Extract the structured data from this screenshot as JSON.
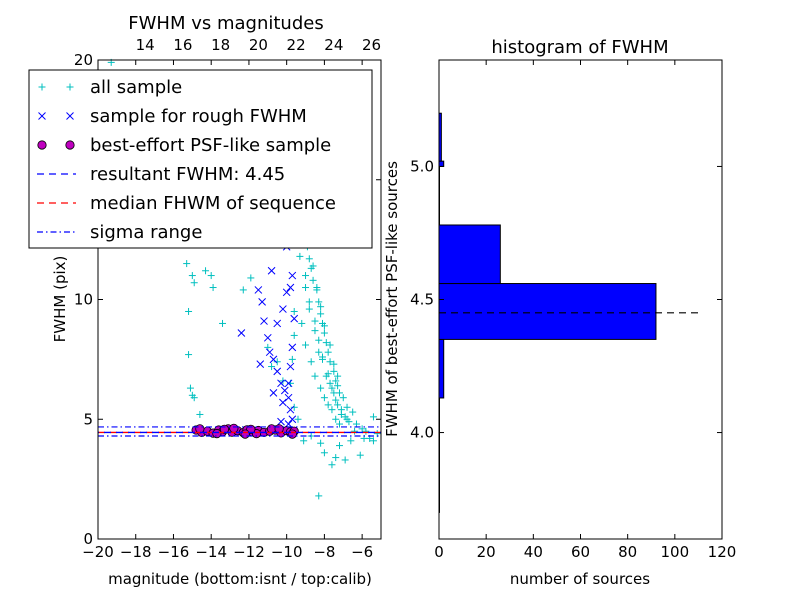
{
  "chart_data": [
    {
      "type": "scatter",
      "title": "FWHM vs magnitudes",
      "xlabel": "magnitude (bottom:isnt / top:calib)",
      "ylabel": "FWHM (pix)",
      "xlim": [
        -20,
        -5
      ],
      "ylim": [
        0,
        20
      ],
      "x_ticks": [
        -20,
        -18,
        -16,
        -14,
        -12,
        -10,
        -8,
        -6
      ],
      "x_tick_labels": [
        "−20",
        "−18",
        "−16",
        "−14",
        "−12",
        "−10",
        "−8",
        "−6"
      ],
      "y_ticks": [
        0,
        5,
        10,
        15,
        20
      ],
      "y_tick_labels": [
        "0",
        "5",
        "10",
        "",
        "20"
      ],
      "top_axis": {
        "offset": 31.5,
        "ticks": [
          14,
          16,
          18,
          20,
          22,
          24,
          26
        ],
        "tick_labels": [
          "14",
          "16",
          "18",
          "20",
          "22",
          "24",
          "26"
        ]
      },
      "legend": {
        "position": "upper-left",
        "entries": [
          {
            "label": "all sample",
            "marker": "plus",
            "color": "#00bfbf"
          },
          {
            "label": "sample for rough FWHM",
            "marker": "x",
            "color": "#0000ff"
          },
          {
            "label": "best-effort PSF-like sample",
            "marker": "circle",
            "color": "#bf00bf"
          },
          {
            "label": "resultant FWHM: 4.45",
            "marker": "dashed",
            "color": "#0000ff"
          },
          {
            "label": "median FHWM of sequence",
            "marker": "dashed",
            "color": "#ff0000"
          },
          {
            "label": "sigma range",
            "marker": "dashdot",
            "color": "#0000ff"
          }
        ]
      },
      "lines": {
        "resultant_fwhm": 4.45,
        "median_fwhm": 4.45,
        "sigma_low": 4.3,
        "sigma_high": 4.68
      },
      "series": [
        {
          "name": "all sample",
          "marker": "plus",
          "color": "#00bfbf",
          "points": [
            [
              -19.3,
              19.9
            ],
            [
              -15.3,
              11.5
            ],
            [
              -15.2,
              9.5
            ],
            [
              -15.2,
              7.7
            ],
            [
              -15.1,
              6.3
            ],
            [
              -15.0,
              6.0
            ],
            [
              -14.9,
              5.9
            ],
            [
              -15.0,
              11.0
            ],
            [
              -14.9,
              10.7
            ],
            [
              -14.6,
              5.2
            ],
            [
              -14.3,
              11.2
            ],
            [
              -14.0,
              11.0
            ],
            [
              -13.9,
              10.5
            ],
            [
              -13.4,
              9.0
            ],
            [
              -12.3,
              10.4
            ],
            [
              -11.9,
              10.9
            ],
            [
              -11.0,
              8.0
            ],
            [
              -10.8,
              7.2
            ],
            [
              -10.5,
              7.4
            ],
            [
              -10.2,
              6.6
            ],
            [
              -9.6,
              5.5
            ],
            [
              -9.4,
              5.0
            ],
            [
              -9.1,
              4.1
            ],
            [
              -8.7,
              4.3
            ],
            [
              -8.3,
              1.8
            ],
            [
              -8.2,
              4.0
            ],
            [
              -8.0,
              3.6
            ],
            [
              -7.6,
              3.1
            ],
            [
              -7.4,
              3.4
            ],
            [
              -7.2,
              3.9
            ],
            [
              -6.9,
              3.3
            ],
            [
              -6.6,
              4.1
            ],
            [
              -6.4,
              4.5
            ],
            [
              -6.1,
              3.5
            ],
            [
              -5.9,
              4.2
            ],
            [
              -5.6,
              4.2
            ],
            [
              -5.4,
              5.1
            ],
            [
              -5.4,
              4.1
            ],
            [
              -5.2,
              4.4
            ],
            [
              -9.3,
              11.8
            ],
            [
              -9.0,
              10.5
            ],
            [
              -8.8,
              9.6
            ],
            [
              -8.5,
              8.7
            ],
            [
              -8.3,
              7.8
            ],
            [
              -8.1,
              7.5
            ],
            [
              -7.9,
              6.8
            ],
            [
              -7.7,
              6.5
            ],
            [
              -7.5,
              6.1
            ],
            [
              -7.3,
              5.6
            ],
            [
              -7.1,
              5.2
            ],
            [
              -6.8,
              5.0
            ],
            [
              -6.5,
              5.3
            ],
            [
              -9.2,
              9.0
            ],
            [
              -9.0,
              8.1
            ],
            [
              -8.7,
              7.4
            ],
            [
              -8.5,
              6.8
            ],
            [
              -8.2,
              6.3
            ],
            [
              -8.0,
              5.9
            ],
            [
              -7.8,
              5.6
            ],
            [
              -7.6,
              5.4
            ],
            [
              -7.4,
              5.0
            ],
            [
              -7.2,
              4.8
            ],
            [
              -8.9,
              12.4
            ],
            [
              -8.6,
              11.4
            ],
            [
              -8.4,
              10.4
            ],
            [
              -8.2,
              9.4
            ],
            [
              -8.0,
              8.6
            ],
            [
              -7.8,
              7.8
            ],
            [
              -7.5,
              7.0
            ],
            [
              -7.3,
              6.4
            ],
            [
              -7.0,
              5.9
            ],
            [
              -6.8,
              5.5
            ],
            [
              -9.4,
              13.5
            ],
            [
              -9.1,
              12.6
            ],
            [
              -8.8,
              11.7
            ],
            [
              -8.6,
              10.8
            ],
            [
              -8.3,
              9.9
            ],
            [
              -8.1,
              9.0
            ],
            [
              -7.9,
              8.2
            ],
            [
              -7.7,
              7.4
            ],
            [
              -7.4,
              6.6
            ],
            [
              -7.2,
              6.1
            ],
            [
              -9.5,
              14.0
            ],
            [
              -9.2,
              13.2
            ],
            [
              -8.9,
              12.2
            ],
            [
              -8.7,
              11.3
            ],
            [
              -8.4,
              10.5
            ],
            [
              -8.2,
              9.7
            ],
            [
              -8.0,
              8.9
            ],
            [
              -7.7,
              8.1
            ],
            [
              -7.5,
              7.3
            ],
            [
              -7.3,
              6.8
            ],
            [
              -9.0,
              11.0
            ],
            [
              -8.8,
              9.9
            ],
            [
              -8.5,
              9.1
            ],
            [
              -8.3,
              8.3
            ],
            [
              -8.1,
              7.6
            ],
            [
              -7.8,
              6.9
            ],
            [
              -7.6,
              6.3
            ],
            [
              -7.4,
              5.8
            ],
            [
              -7.1,
              5.4
            ],
            [
              -6.9,
              5.1
            ],
            [
              -6.7,
              4.9
            ],
            [
              -6.3,
              4.8
            ],
            [
              -6.0,
              4.6
            ],
            [
              -5.8,
              4.5
            ],
            [
              -9.6,
              9.5
            ],
            [
              -9.6,
              8.5
            ],
            [
              -9.7,
              7.5
            ],
            [
              -9.8,
              6.5
            ]
          ]
        },
        {
          "name": "sample for rough FWHM",
          "marker": "x",
          "color": "#0000ff",
          "points": [
            [
              -11.9,
              13.6
            ],
            [
              -11.7,
              12.8
            ],
            [
              -11.5,
              12.3
            ],
            [
              -11.1,
              14.0
            ],
            [
              -11.0,
              12.6
            ],
            [
              -10.6,
              12.9
            ],
            [
              -10.3,
              13.4
            ],
            [
              -10.0,
              12.2
            ],
            [
              -9.7,
              11.0
            ],
            [
              -11.5,
              10.4
            ],
            [
              -11.3,
              9.9
            ],
            [
              -11.2,
              9.1
            ],
            [
              -11.0,
              8.4
            ],
            [
              -10.9,
              7.8
            ],
            [
              -10.7,
              7.5
            ],
            [
              -10.5,
              7.0
            ],
            [
              -10.3,
              6.5
            ],
            [
              -10.1,
              6.2
            ],
            [
              -9.9,
              5.9
            ],
            [
              -9.8,
              5.4
            ],
            [
              -9.7,
              5.0
            ],
            [
              -10.0,
              10.3
            ],
            [
              -10.2,
              9.6
            ],
            [
              -10.5,
              9.0
            ],
            [
              -10.8,
              11.2
            ],
            [
              -9.8,
              10.5
            ],
            [
              -9.6,
              9.2
            ],
            [
              -9.7,
              8.0
            ],
            [
              -9.8,
              7.2
            ],
            [
              -9.9,
              6.5
            ],
            [
              -10.2,
              5.7
            ],
            [
              -10.3,
              4.9
            ],
            [
              -12.4,
              8.6
            ],
            [
              -11.4,
              7.3
            ],
            [
              -10.7,
              6.1
            ],
            [
              -9.9,
              4.8
            ]
          ]
        },
        {
          "name": "best-effort PSF-like sample",
          "marker": "circle",
          "color": "#bf00bf",
          "points": [
            [
              -14.8,
              4.55
            ],
            [
              -14.5,
              4.45
            ],
            [
              -14.2,
              4.5
            ],
            [
              -13.9,
              4.42
            ],
            [
              -13.6,
              4.55
            ],
            [
              -13.4,
              4.48
            ],
            [
              -13.1,
              4.6
            ],
            [
              -12.9,
              4.46
            ],
            [
              -12.6,
              4.52
            ],
            [
              -12.3,
              4.44
            ],
            [
              -12.1,
              4.56
            ],
            [
              -11.8,
              4.47
            ],
            [
              -11.5,
              4.53
            ],
            [
              -11.2,
              4.45
            ],
            [
              -10.9,
              4.5
            ],
            [
              -10.6,
              4.55
            ],
            [
              -10.3,
              4.43
            ],
            [
              -10.0,
              4.52
            ],
            [
              -9.8,
              4.47
            ],
            [
              -9.6,
              4.5
            ],
            [
              -14.6,
              4.6
            ],
            [
              -13.7,
              4.4
            ],
            [
              -12.8,
              4.62
            ],
            [
              -11.6,
              4.4
            ],
            [
              -10.8,
              4.6
            ],
            [
              -9.7,
              4.38
            ],
            [
              -13.3,
              4.58
            ],
            [
              -11.9,
              4.58
            ],
            [
              -10.4,
              4.6
            ],
            [
              -12.2,
              4.38
            ]
          ]
        }
      ]
    },
    {
      "type": "histogram",
      "title": "histogram of FWHM",
      "xlabel": "number of sources",
      "ylabel": "FWHM of best-effort PSF-like sources",
      "orientation": "horizontal",
      "xlim": [
        0,
        120
      ],
      "ylim": [
        3.6,
        5.4
      ],
      "x_ticks": [
        0,
        20,
        40,
        60,
        80,
        100,
        120
      ],
      "x_tick_labels": [
        "0",
        "20",
        "40",
        "60",
        "80",
        "100",
        "120"
      ],
      "y_ticks": [
        4.0,
        4.5,
        5.0
      ],
      "y_tick_labels": [
        "4.0",
        "4.5",
        "5.0"
      ],
      "bins": [
        {
          "from": 3.7,
          "to": 3.91,
          "count": 0
        },
        {
          "from": 3.91,
          "to": 4.13,
          "count": 0
        },
        {
          "from": 4.13,
          "to": 4.35,
          "count": 2
        },
        {
          "from": 4.35,
          "to": 4.56,
          "count": 92
        },
        {
          "from": 4.56,
          "to": 4.78,
          "count": 26
        },
        {
          "from": 4.78,
          "to": 5.0,
          "count": 0
        },
        {
          "from": 5.0,
          "to": 5.02,
          "count": 2
        },
        {
          "from": 5.02,
          "to": 5.2,
          "count": 1
        }
      ],
      "bar_color": "#0000ff",
      "reference_line": {
        "value": 4.45,
        "to_count": 110
      }
    }
  ]
}
